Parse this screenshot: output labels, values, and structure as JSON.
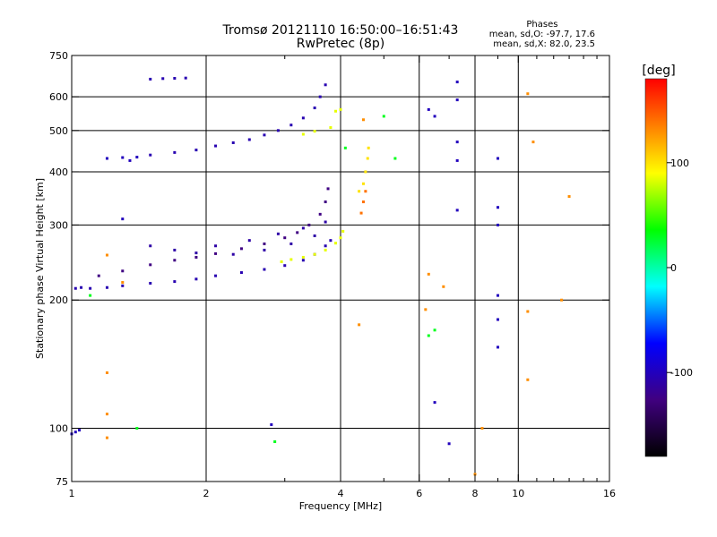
{
  "header": {
    "title_line1": "Tromsø 20121110 16:50:00–16:51:43",
    "title_line2": "RwPretec (8p)"
  },
  "phases_box": {
    "title": "Phases",
    "line_o": "mean, sd,O: -97.7, 17.6",
    "line_x": "mean, sd,X:  82.0, 23.5"
  },
  "colorbar": {
    "label": "[deg]",
    "ticks": [
      "100",
      "0",
      "-100"
    ],
    "tick_values": [
      100,
      0,
      -100
    ],
    "range": [
      -180,
      180
    ]
  },
  "chart_data": {
    "type": "scatter",
    "xlabel": "Frequency [MHz]",
    "ylabel": "Stationary phase Virtual Height [km]",
    "xscale": "log",
    "yscale": "log",
    "xlim": [
      1,
      16
    ],
    "ylim": [
      75,
      750
    ],
    "x_ticks": [
      1,
      2,
      4,
      6,
      8,
      10,
      16
    ],
    "x_tick_labels": [
      "1",
      "2",
      "4",
      "6",
      "8",
      "10",
      "16"
    ],
    "x_minor_ticks": [
      3,
      5,
      7,
      9,
      11,
      12,
      13,
      14,
      15
    ],
    "y_ticks": [
      75,
      100,
      200,
      300,
      400,
      500,
      600,
      750
    ],
    "y_tick_labels": [
      "75",
      "100",
      "200",
      "300",
      "400",
      "500",
      "600",
      "750"
    ],
    "x_grid": [
      2,
      4,
      6,
      8,
      10
    ],
    "y_grid": [
      100,
      200,
      300,
      400,
      500,
      600
    ],
    "grid": true,
    "traces": [
      {
        "name": "",
        "phase_deg": -105,
        "points": [
          [
            1.02,
            213
          ],
          [
            1.05,
            214
          ],
          [
            1.1,
            213
          ],
          [
            1.2,
            214
          ],
          [
            1.3,
            216
          ],
          [
            1.5,
            219
          ],
          [
            1.7,
            221
          ],
          [
            1.9,
            224
          ],
          [
            2.1,
            228
          ],
          [
            2.4,
            232
          ],
          [
            2.7,
            236
          ],
          [
            3.0,
            241
          ],
          [
            3.3,
            248
          ],
          [
            3.5,
            256
          ],
          [
            3.7,
            268
          ],
          [
            3.8,
            276
          ]
        ]
      },
      {
        "name": "",
        "phase_deg": -125,
        "points": [
          [
            1.15,
            228
          ],
          [
            1.3,
            234
          ],
          [
            1.5,
            242
          ],
          [
            1.7,
            248
          ],
          [
            1.9,
            252
          ],
          [
            2.1,
            257
          ],
          [
            2.4,
            264
          ],
          [
            2.7,
            271
          ],
          [
            3.0,
            280
          ],
          [
            3.2,
            288
          ],
          [
            3.4,
            300
          ],
          [
            3.6,
            318
          ],
          [
            3.7,
            340
          ],
          [
            3.75,
            365
          ]
        ]
      },
      {
        "name": "",
        "phase_deg": -110,
        "points": [
          [
            1.5,
            268
          ],
          [
            1.7,
            262
          ],
          [
            1.9,
            258
          ],
          [
            2.1,
            268
          ],
          [
            2.3,
            256
          ],
          [
            2.5,
            276
          ],
          [
            2.7,
            262
          ],
          [
            2.9,
            286
          ],
          [
            3.1,
            271
          ],
          [
            3.3,
            295
          ],
          [
            3.5,
            283
          ],
          [
            3.7,
            305
          ]
        ]
      },
      {
        "name": "",
        "phase_deg": 85,
        "points": [
          [
            2.95,
            246
          ],
          [
            3.1,
            249
          ],
          [
            3.3,
            252
          ],
          [
            3.5,
            256
          ],
          [
            3.7,
            262
          ],
          [
            3.9,
            272
          ],
          [
            4.0,
            280
          ],
          [
            4.05,
            290
          ]
        ]
      },
      {
        "name": "",
        "phase_deg": 100,
        "points": [
          [
            4.4,
            360
          ],
          [
            4.5,
            375
          ],
          [
            4.55,
            400
          ],
          [
            4.6,
            430
          ],
          [
            4.62,
            455
          ]
        ]
      },
      {
        "name": "",
        "phase_deg": 140,
        "points": [
          [
            4.45,
            320
          ],
          [
            4.5,
            340
          ],
          [
            4.55,
            360
          ]
        ]
      },
      {
        "name": "",
        "phase_deg": -105,
        "points": [
          [
            1.5,
            438
          ],
          [
            1.7,
            444
          ],
          [
            1.9,
            450
          ],
          [
            2.1,
            460
          ],
          [
            2.3,
            468
          ],
          [
            2.5,
            476
          ],
          [
            2.7,
            488
          ],
          [
            2.9,
            500
          ],
          [
            3.1,
            515
          ],
          [
            3.3,
            535
          ],
          [
            3.5,
            565
          ],
          [
            3.6,
            600
          ],
          [
            3.7,
            640
          ]
        ]
      },
      {
        "name": "",
        "phase_deg": 85,
        "points": [
          [
            3.3,
            490
          ],
          [
            3.5,
            498
          ],
          [
            3.8,
            508
          ],
          [
            3.9,
            555
          ],
          [
            4.0,
            560
          ]
        ]
      },
      {
        "name": "",
        "phase_deg": -105,
        "points": [
          [
            1.5,
            660
          ],
          [
            1.6,
            662
          ],
          [
            1.7,
            663
          ],
          [
            1.8,
            664
          ]
        ]
      },
      {
        "name": "",
        "phase_deg": -100,
        "points": [
          [
            1.2,
            430
          ],
          [
            1.3,
            432
          ],
          [
            1.4,
            433
          ],
          [
            1.35,
            425
          ]
        ]
      },
      {
        "name": "",
        "phase_deg": -100,
        "points": [
          [
            1.0,
            97
          ],
          [
            1.02,
            98
          ],
          [
            1.04,
            99
          ]
        ]
      },
      {
        "name": "",
        "phase_deg": -100,
        "points": [
          [
            6.3,
            560
          ],
          [
            6.5,
            540
          ],
          [
            7.3,
            650
          ],
          [
            7.3,
            590
          ],
          [
            7.3,
            470
          ],
          [
            7.3,
            425
          ],
          [
            7.3,
            325
          ],
          [
            9.0,
            430
          ],
          [
            9.0,
            330
          ],
          [
            9.0,
            300
          ],
          [
            9.0,
            205
          ],
          [
            9.0,
            180
          ],
          [
            9.0,
            155
          ],
          [
            6.5,
            115
          ],
          [
            7.0,
            92
          ],
          [
            2.8,
            102
          ],
          [
            1.3,
            310
          ]
        ]
      },
      {
        "name": "",
        "phase_deg": 130,
        "points": [
          [
            10.5,
            610
          ],
          [
            10.8,
            470
          ],
          [
            10.5,
            188
          ],
          [
            10.5,
            130
          ],
          [
            6.3,
            230
          ],
          [
            6.2,
            190
          ],
          [
            6.8,
            215
          ],
          [
            4.5,
            530
          ],
          [
            4.4,
            175
          ],
          [
            1.2,
            255
          ],
          [
            1.3,
            220
          ],
          [
            1.2,
            135
          ],
          [
            1.2,
            108
          ],
          [
            1.2,
            95
          ],
          [
            8.0,
            78
          ],
          [
            8.3,
            100
          ],
          [
            13.0,
            350
          ],
          [
            12.5,
            200
          ]
        ]
      },
      {
        "name": "",
        "phase_deg": 30,
        "points": [
          [
            5.3,
            430
          ],
          [
            5.0,
            540
          ],
          [
            4.1,
            455
          ],
          [
            6.3,
            165
          ],
          [
            6.5,
            170
          ],
          [
            1.1,
            205
          ],
          [
            1.4,
            100
          ],
          [
            2.85,
            93
          ]
        ]
      }
    ]
  }
}
